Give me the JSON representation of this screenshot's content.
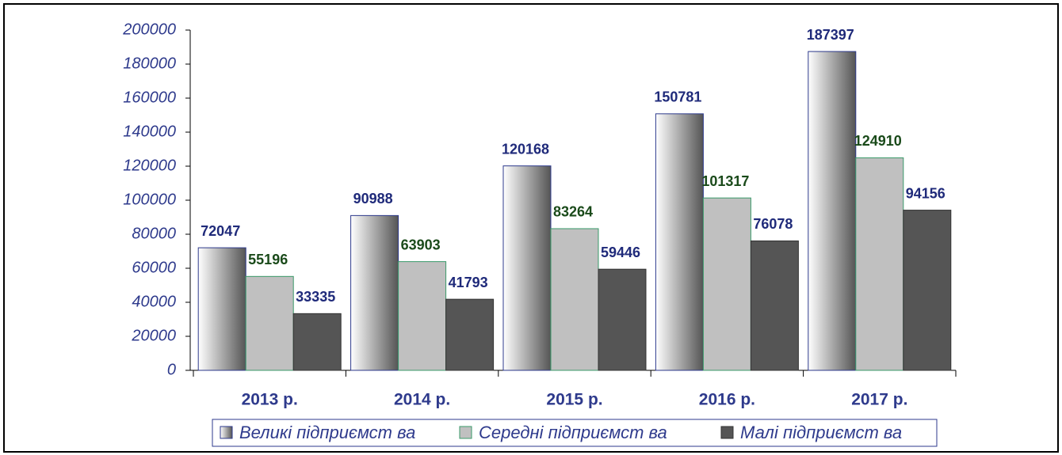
{
  "chart_data": {
    "type": "bar",
    "categories": [
      "2013 р.",
      "2014 р.",
      "2015 р.",
      "2016 р.",
      "2017 р."
    ],
    "series": [
      {
        "name": "Великі підприємст ва",
        "color": "#555555",
        "values": [
          72047,
          90988,
          120168,
          150781,
          187397
        ]
      },
      {
        "name": "Середні підприємст ва",
        "color": "#c0c0c0",
        "values": [
          55196,
          63903,
          83264,
          101317,
          124910
        ]
      },
      {
        "name": "Малі підприємст ва",
        "color": "#555555",
        "values": [
          33335,
          41793,
          59446,
          76078,
          94156
        ]
      }
    ],
    "ylim": [
      0,
      200000
    ],
    "yticks": [
      0,
      20000,
      40000,
      60000,
      80000,
      100000,
      120000,
      140000,
      160000,
      180000,
      200000
    ],
    "gradient_first_series": true,
    "legend": "bottom"
  }
}
